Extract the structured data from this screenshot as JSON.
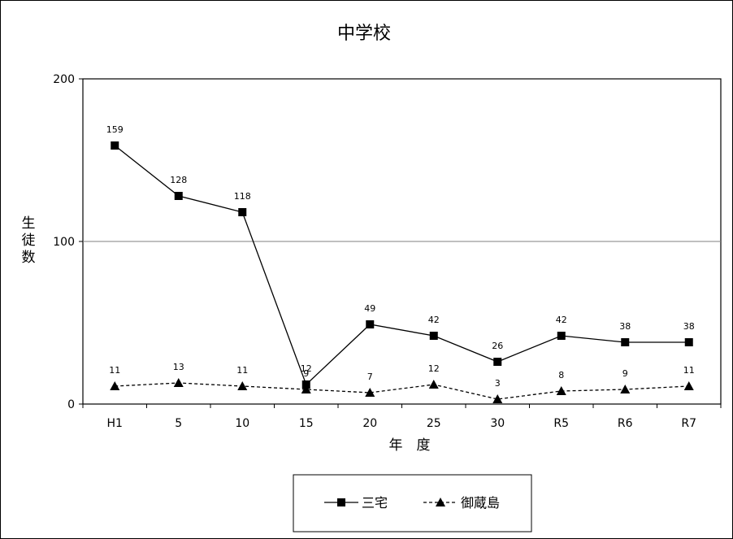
{
  "chart_data": {
    "type": "line",
    "title": "中学校",
    "xlabel": "年　度",
    "ylabel": "生徒数",
    "categories": [
      "H1",
      "5",
      "10",
      "15",
      "20",
      "25",
      "30",
      "R5",
      "R6",
      "R7"
    ],
    "ylim": [
      0,
      200
    ],
    "yticks": [
      "0",
      "100",
      "200"
    ],
    "grid": "y",
    "legend_position": "bottom",
    "series": [
      {
        "name": "三宅",
        "marker": "square",
        "line": "solid",
        "values": [
          159,
          128,
          118,
          12,
          49,
          42,
          26,
          42,
          38,
          38
        ],
        "labels": [
          "159",
          "128",
          "118",
          "12",
          "49",
          "42",
          "26",
          "42",
          "38",
          "38"
        ]
      },
      {
        "name": "御蔵島",
        "marker": "triangle",
        "line": "dashed",
        "values": [
          11,
          13,
          11,
          9,
          7,
          12,
          3,
          8,
          9,
          11
        ],
        "labels": [
          "11",
          "13",
          "11",
          "9",
          "7",
          "12",
          "3",
          "8",
          "9",
          "11"
        ]
      }
    ],
    "colors": {
      "line": "#000000",
      "grid": "#808080"
    }
  }
}
